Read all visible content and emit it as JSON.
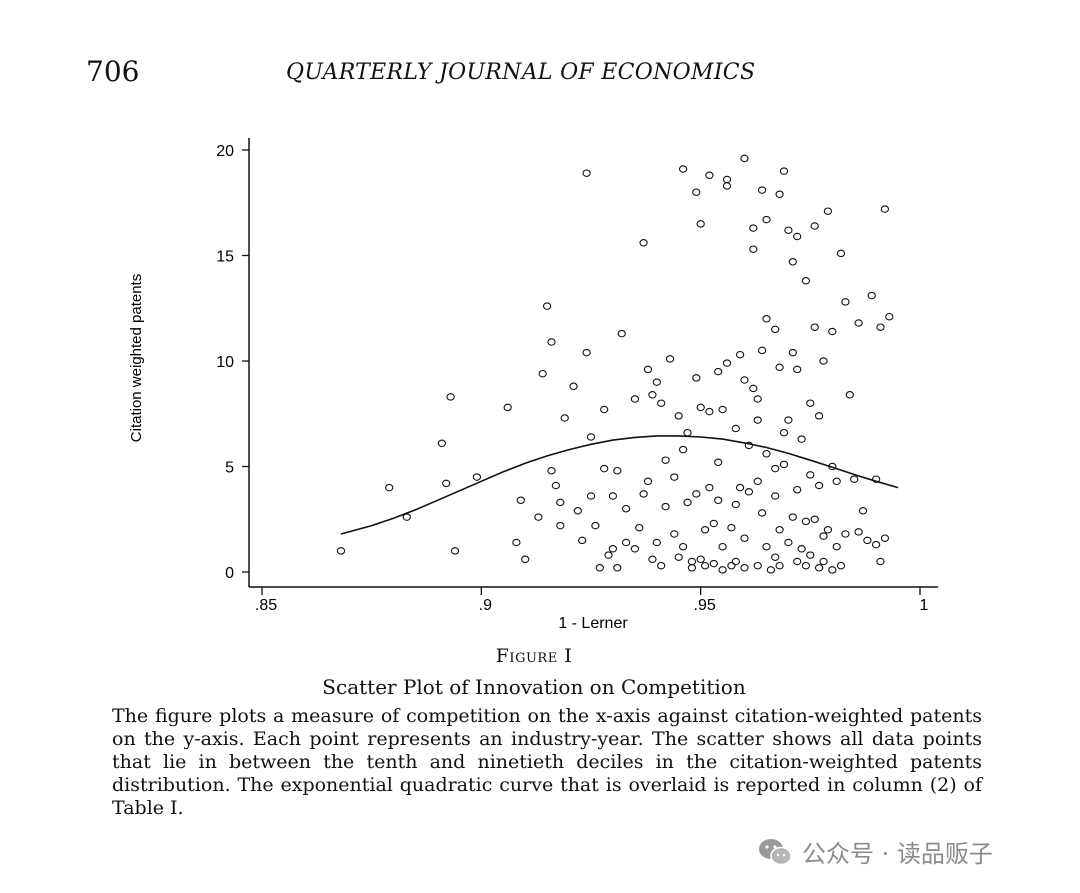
{
  "header": {
    "page_number": "706",
    "journal": "QUARTERLY JOURNAL OF ECONOMICS"
  },
  "figure": {
    "label": "Figure I",
    "title": "Scatter Plot of Innovation on Competition",
    "caption": "The figure plots a measure of competition on the x-axis against citation-weighted patents on the y-axis. Each point represents an industry-year. The scatter shows all data points that lie in between the tenth and ninetieth deciles in the citation-weighted patents distribution. The exponential quadratic curve that is overlaid is reported in column (2) of Table I."
  },
  "chart_data": {
    "type": "scatter",
    "xlabel": "1 - Lerner",
    "ylabel": "Citation weighted patents",
    "xlim": [
      0.85,
      1.0
    ],
    "ylim": [
      0,
      20
    ],
    "xticks": [
      0.85,
      0.9,
      0.95,
      1.0
    ],
    "xtick_labels": [
      ".85",
      ".9",
      ".95",
      "1"
    ],
    "yticks": [
      0,
      5,
      10,
      15,
      20
    ],
    "ytick_labels": [
      "0",
      "5",
      "10",
      "15",
      "20"
    ],
    "grid": false,
    "marker": "hollow-circle",
    "points": [
      [
        0.868,
        1.0
      ],
      [
        0.879,
        4.0
      ],
      [
        0.883,
        2.6
      ],
      [
        0.891,
        6.1
      ],
      [
        0.892,
        4.2
      ],
      [
        0.893,
        8.3
      ],
      [
        0.894,
        1.0
      ],
      [
        0.899,
        4.5
      ],
      [
        0.906,
        7.8
      ],
      [
        0.908,
        1.4
      ],
      [
        0.909,
        3.4
      ],
      [
        0.91,
        0.6
      ],
      [
        0.913,
        2.6
      ],
      [
        0.914,
        9.4
      ],
      [
        0.915,
        12.6
      ],
      [
        0.916,
        4.8
      ],
      [
        0.916,
        10.9
      ],
      [
        0.917,
        4.1
      ],
      [
        0.918,
        3.3
      ],
      [
        0.918,
        2.2
      ],
      [
        0.919,
        7.3
      ],
      [
        0.921,
        8.8
      ],
      [
        0.922,
        2.9
      ],
      [
        0.923,
        1.5
      ],
      [
        0.924,
        18.9
      ],
      [
        0.924,
        10.4
      ],
      [
        0.925,
        3.6
      ],
      [
        0.925,
        6.4
      ],
      [
        0.926,
        2.2
      ],
      [
        0.927,
        0.2
      ],
      [
        0.928,
        4.9
      ],
      [
        0.928,
        7.7
      ],
      [
        0.929,
        0.8
      ],
      [
        0.93,
        3.6
      ],
      [
        0.93,
        1.1
      ],
      [
        0.931,
        4.8
      ],
      [
        0.931,
        0.2
      ],
      [
        0.932,
        11.3
      ],
      [
        0.933,
        1.4
      ],
      [
        0.933,
        3.0
      ],
      [
        0.935,
        8.2
      ],
      [
        0.935,
        1.1
      ],
      [
        0.936,
        2.1
      ],
      [
        0.937,
        3.7
      ],
      [
        0.937,
        15.6
      ],
      [
        0.938,
        9.6
      ],
      [
        0.938,
        4.3
      ],
      [
        0.939,
        8.4
      ],
      [
        0.939,
        0.6
      ],
      [
        0.94,
        9.0
      ],
      [
        0.94,
        1.4
      ],
      [
        0.941,
        8.0
      ],
      [
        0.941,
        0.3
      ],
      [
        0.942,
        5.3
      ],
      [
        0.942,
        3.1
      ],
      [
        0.943,
        10.1
      ],
      [
        0.944,
        4.5
      ],
      [
        0.944,
        1.8
      ],
      [
        0.945,
        7.4
      ],
      [
        0.945,
        0.7
      ],
      [
        0.946,
        19.1
      ],
      [
        0.946,
        5.8
      ],
      [
        0.946,
        1.2
      ],
      [
        0.947,
        6.6
      ],
      [
        0.947,
        3.3
      ],
      [
        0.948,
        0.5
      ],
      [
        0.948,
        0.2
      ],
      [
        0.949,
        9.2
      ],
      [
        0.949,
        3.7
      ],
      [
        0.949,
        18.0
      ],
      [
        0.95,
        7.8
      ],
      [
        0.95,
        16.5
      ],
      [
        0.95,
        0.6
      ],
      [
        0.951,
        2.0
      ],
      [
        0.951,
        0.3
      ],
      [
        0.952,
        18.8
      ],
      [
        0.952,
        7.6
      ],
      [
        0.952,
        4.0
      ],
      [
        0.953,
        2.3
      ],
      [
        0.953,
        0.4
      ],
      [
        0.954,
        9.5
      ],
      [
        0.954,
        3.4
      ],
      [
        0.954,
        5.2
      ],
      [
        0.955,
        7.7
      ],
      [
        0.955,
        1.2
      ],
      [
        0.955,
        0.1
      ],
      [
        0.956,
        18.6
      ],
      [
        0.956,
        18.3
      ],
      [
        0.956,
        9.9
      ],
      [
        0.957,
        2.1
      ],
      [
        0.957,
        0.3
      ],
      [
        0.958,
        6.8
      ],
      [
        0.958,
        3.2
      ],
      [
        0.958,
        0.5
      ],
      [
        0.959,
        10.3
      ],
      [
        0.959,
        4.0
      ],
      [
        0.96,
        19.6
      ],
      [
        0.96,
        9.1
      ],
      [
        0.96,
        1.6
      ],
      [
        0.96,
        0.2
      ],
      [
        0.961,
        6.0
      ],
      [
        0.961,
        3.8
      ],
      [
        0.962,
        8.7
      ],
      [
        0.962,
        16.3
      ],
      [
        0.962,
        15.3
      ],
      [
        0.963,
        7.2
      ],
      [
        0.963,
        8.2
      ],
      [
        0.963,
        4.3
      ],
      [
        0.963,
        0.3
      ],
      [
        0.964,
        18.1
      ],
      [
        0.964,
        10.5
      ],
      [
        0.964,
        2.8
      ],
      [
        0.965,
        16.7
      ],
      [
        0.965,
        12.0
      ],
      [
        0.965,
        5.6
      ],
      [
        0.965,
        1.2
      ],
      [
        0.966,
        0.1
      ],
      [
        0.967,
        11.5
      ],
      [
        0.967,
        4.9
      ],
      [
        0.967,
        3.6
      ],
      [
        0.967,
        0.7
      ],
      [
        0.968,
        17.9
      ],
      [
        0.968,
        9.7
      ],
      [
        0.968,
        2.0
      ],
      [
        0.968,
        0.3
      ],
      [
        0.969,
        19.0
      ],
      [
        0.969,
        6.6
      ],
      [
        0.969,
        5.1
      ],
      [
        0.97,
        16.2
      ],
      [
        0.97,
        7.2
      ],
      [
        0.97,
        1.4
      ],
      [
        0.971,
        14.7
      ],
      [
        0.971,
        10.4
      ],
      [
        0.971,
        2.6
      ],
      [
        0.972,
        15.9
      ],
      [
        0.972,
        9.6
      ],
      [
        0.972,
        3.9
      ],
      [
        0.972,
        0.5
      ],
      [
        0.973,
        6.3
      ],
      [
        0.973,
        1.1
      ],
      [
        0.974,
        13.8
      ],
      [
        0.974,
        2.4
      ],
      [
        0.974,
        0.3
      ],
      [
        0.975,
        4.6
      ],
      [
        0.975,
        8.0
      ],
      [
        0.975,
        0.8
      ],
      [
        0.976,
        16.4
      ],
      [
        0.976,
        11.6
      ],
      [
        0.976,
        2.5
      ],
      [
        0.977,
        7.4
      ],
      [
        0.977,
        4.1
      ],
      [
        0.977,
        0.2
      ],
      [
        0.978,
        10.0
      ],
      [
        0.978,
        1.7
      ],
      [
        0.978,
        0.5
      ],
      [
        0.979,
        17.1
      ],
      [
        0.979,
        2.0
      ],
      [
        0.98,
        11.4
      ],
      [
        0.98,
        5.0
      ],
      [
        0.98,
        0.1
      ],
      [
        0.981,
        4.3
      ],
      [
        0.981,
        1.2
      ],
      [
        0.982,
        15.1
      ],
      [
        0.982,
        0.3
      ],
      [
        0.983,
        12.8
      ],
      [
        0.983,
        1.8
      ],
      [
        0.984,
        8.4
      ],
      [
        0.985,
        4.4
      ],
      [
        0.986,
        11.8
      ],
      [
        0.986,
        1.9
      ],
      [
        0.987,
        2.9
      ],
      [
        0.988,
        1.5
      ],
      [
        0.989,
        13.1
      ],
      [
        0.99,
        4.4
      ],
      [
        0.99,
        1.3
      ],
      [
        0.991,
        11.6
      ],
      [
        0.991,
        0.5
      ],
      [
        0.992,
        17.2
      ],
      [
        0.993,
        12.1
      ],
      [
        0.992,
        1.6
      ]
    ],
    "curve": {
      "label": "exponential quadratic fit",
      "x": [
        0.868,
        0.875,
        0.88,
        0.885,
        0.89,
        0.895,
        0.9,
        0.905,
        0.91,
        0.915,
        0.92,
        0.925,
        0.93,
        0.935,
        0.94,
        0.945,
        0.95,
        0.955,
        0.96,
        0.965,
        0.97,
        0.975,
        0.98,
        0.985,
        0.99,
        0.995
      ],
      "y": [
        1.8,
        2.2,
        2.55,
        2.95,
        3.4,
        3.85,
        4.3,
        4.75,
        5.15,
        5.5,
        5.8,
        6.05,
        6.25,
        6.38,
        6.45,
        6.45,
        6.4,
        6.3,
        6.12,
        5.9,
        5.62,
        5.3,
        4.96,
        4.62,
        4.3,
        4.0
      ]
    }
  },
  "watermark": {
    "text": "公众号 · 读品贩子",
    "icon": "wechat-logo"
  }
}
